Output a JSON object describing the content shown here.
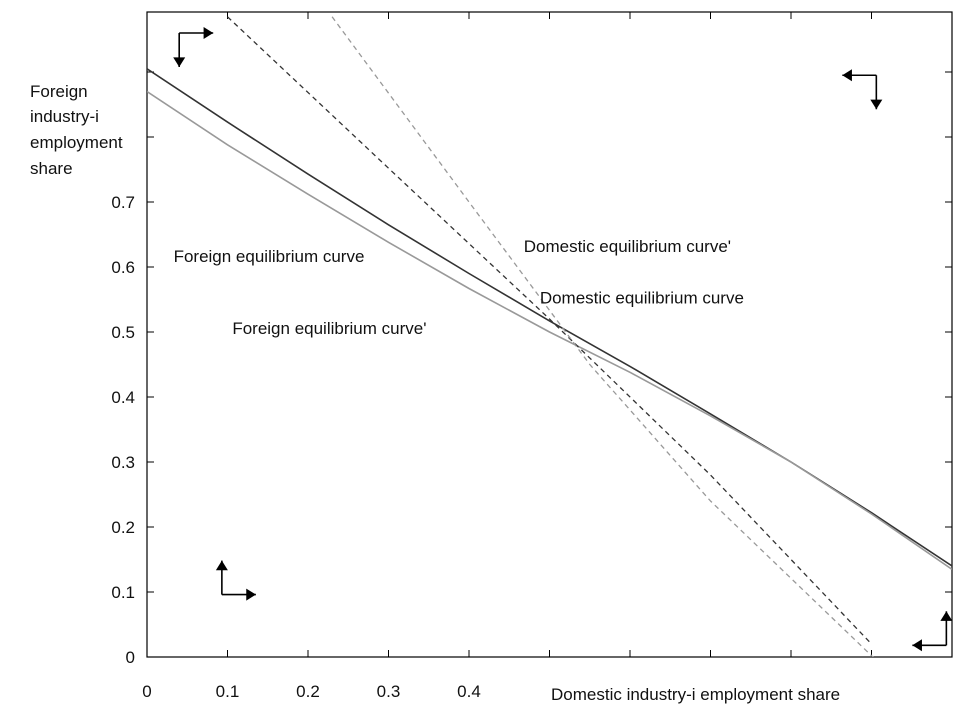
{
  "chart_data": {
    "type": "line",
    "xlabel": "Domestic industry-i employment share",
    "ylabel_lines": [
      "Foreign",
      "industry-i",
      "employment",
      "share"
    ],
    "xlim": [
      0,
      1
    ],
    "ylim": [
      0,
      0.8
    ],
    "x_ticks": [
      0,
      0.1,
      0.2,
      0.3,
      0.4,
      0.5,
      0.6,
      0.7,
      0.8,
      0.9,
      1.0
    ],
    "x_tick_labels": [
      "0",
      "0.1",
      "0.2",
      "0.3",
      "0.4",
      "",
      "",
      "",
      "",
      "",
      ""
    ],
    "y_ticks": [
      0,
      0.1,
      0.2,
      0.3,
      0.4,
      0.5,
      0.6,
      0.7,
      0.8,
      0.9
    ],
    "y_tick_labels": [
      "0",
      "0.1",
      "0.2",
      "0.3",
      "0.4",
      "0.5",
      "0.6",
      "0.7",
      "",
      ""
    ],
    "grid": false,
    "series": [
      {
        "name": "Foreign equilibrium curve",
        "style": "solid",
        "color": "#333333",
        "x": [
          0,
          0.1,
          0.2,
          0.3,
          0.4,
          0.5,
          0.6,
          0.7,
          0.8,
          0.9,
          1.0
        ],
        "y": [
          0.905,
          0.823,
          0.743,
          0.665,
          0.59,
          0.517,
          0.447,
          0.374,
          0.3,
          0.222,
          0.14
        ]
      },
      {
        "name": "Foreign equilibrium curve'",
        "style": "solid",
        "color": "#999999",
        "x": [
          0,
          0.1,
          0.2,
          0.3,
          0.4,
          0.5,
          0.6,
          0.7,
          0.8,
          0.9,
          1.0
        ],
        "y": [
          0.87,
          0.788,
          0.712,
          0.638,
          0.567,
          0.5,
          0.438,
          0.371,
          0.3,
          0.22,
          0.135
        ]
      },
      {
        "name": "Domestic equilibrium curve",
        "style": "dashed",
        "color": "#333333",
        "x": [
          0.1,
          0.3,
          0.5,
          0.7,
          0.9
        ],
        "y": [
          0.985,
          0.752,
          0.52,
          0.28,
          0.02
        ]
      },
      {
        "name": "Domestic equilibrium curve'",
        "style": "dashed",
        "color": "#999999",
        "x": [
          0.23,
          0.4,
          0.55,
          0.7,
          0.906
        ],
        "y": [
          0.985,
          0.7,
          0.45,
          0.24,
          -0.005
        ]
      }
    ],
    "annotations": [
      {
        "text": "Foreign equilibrium curve",
        "x": 0.033,
        "y": 0.608
      },
      {
        "text": "Foreign equilibrium curve'",
        "x": 0.106,
        "y": 0.497
      },
      {
        "text": "Domestic equilibrium curve'",
        "x": 0.468,
        "y": 0.623
      },
      {
        "text": "Domestic equilibrium curve",
        "x": 0.488,
        "y": 0.544
      }
    ],
    "arrow_markers": [
      {
        "corner": "top-left",
        "x": 0.04,
        "y": 0.96,
        "directions": [
          "right",
          "down"
        ]
      },
      {
        "corner": "top-right",
        "x": 0.906,
        "y": 0.895,
        "directions": [
          "left",
          "down"
        ]
      },
      {
        "corner": "bottom-left",
        "x": 0.093,
        "y": 0.096,
        "directions": [
          "right",
          "up"
        ]
      },
      {
        "corner": "bottom-right",
        "x": 0.993,
        "y": 0.018,
        "directions": [
          "left",
          "up"
        ]
      }
    ]
  }
}
